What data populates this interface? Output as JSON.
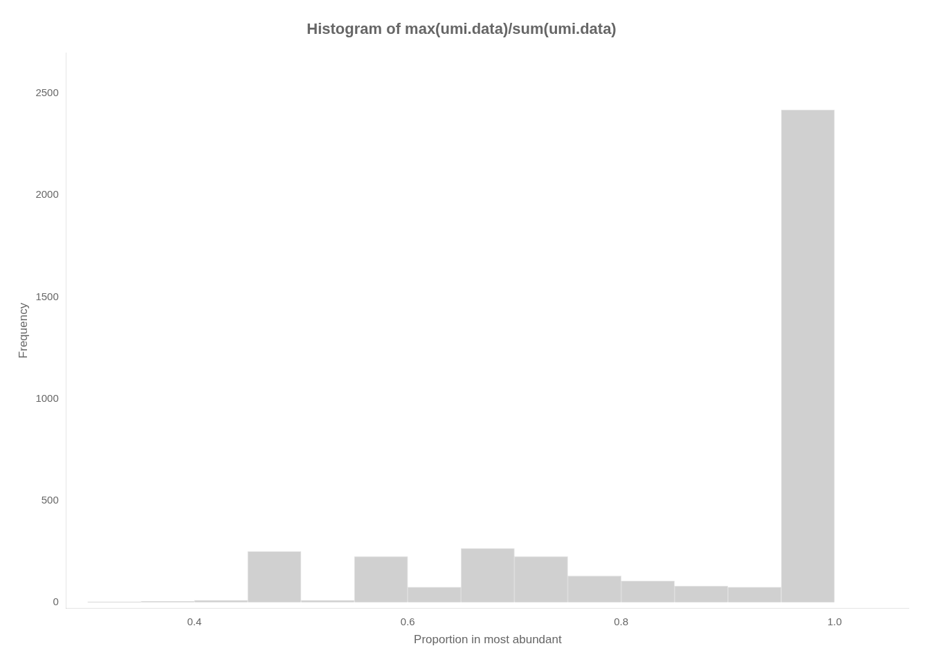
{
  "chart_data": {
    "type": "histogram",
    "title": "Histogram of max(umi.data)/sum(umi.data)",
    "xlabel": "Proportion in most abundant",
    "ylabel": "Frequency",
    "bins": [
      0.3,
      0.35,
      0.4,
      0.45,
      0.5,
      0.55,
      0.6,
      0.65,
      0.7,
      0.75,
      0.8,
      0.85,
      0.9,
      0.95,
      1.0
    ],
    "values": [
      2,
      5,
      10,
      250,
      10,
      225,
      75,
      265,
      225,
      130,
      105,
      80,
      75,
      2420
    ],
    "color": "#d0d0d0",
    "xlim": [
      0.28,
      1.07
    ],
    "ylim": [
      -30,
      2700
    ],
    "xticks": [
      0.4,
      0.6,
      0.8,
      {
        "value": 1.0,
        "label": "1.0"
      }
    ],
    "yticks": [
      0,
      500,
      1000,
      1500,
      2000,
      2500
    ],
    "grid": false
  }
}
